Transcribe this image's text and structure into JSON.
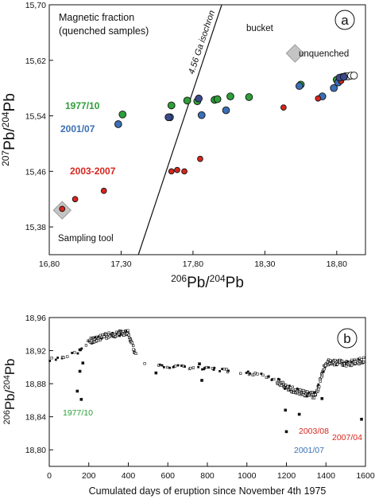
{
  "colors": {
    "green": "#2e9e3a",
    "blue": "#3a6fb6",
    "red": "#d7261e",
    "navy": "#3b4a8a",
    "gray": "#bdbdbd",
    "black": "#111111"
  },
  "chart_data": [
    {
      "type": "scatter",
      "panel_label": "a",
      "title": "Magnetic fraction",
      "subtitle": "(quenched samples)",
      "xlabel": "206Pb/204Pb",
      "ylabel": "207Pb/204Pb",
      "xlim": [
        16.8,
        19.0
      ],
      "ylim": [
        15.34,
        15.7
      ],
      "x_ticks": [
        "16,80",
        "17,30",
        "17,80",
        "18,30",
        "18,80"
      ],
      "y_ticks": [
        "15,38",
        "15,46",
        "15,54",
        "15,62",
        "15,70"
      ],
      "isochron": {
        "label": "4.56 Ga isochron",
        "x": [
          17.42,
          18.0
        ],
        "y": [
          15.34,
          15.7
        ]
      },
      "annotations": [
        {
          "text": "1977/10",
          "color": "#2e9e3a"
        },
        {
          "text": "2001/07",
          "color": "#3a6fb6"
        },
        {
          "text": "2003-2007",
          "color": "#d7261e"
        },
        {
          "text": "bucket"
        },
        {
          "text": "unquenched"
        },
        {
          "text": "Sampling tool"
        }
      ],
      "series": [
        {
          "name": "1977/10",
          "color": "#2e9e3a",
          "x": [
            17.31,
            17.65,
            17.76,
            17.83,
            17.95,
            17.97,
            18.06,
            18.19,
            18.55,
            18.8,
            18.83
          ],
          "y": [
            15.542,
            15.555,
            15.562,
            15.561,
            15.563,
            15.564,
            15.568,
            15.567,
            15.585,
            15.592,
            15.595
          ]
        },
        {
          "name": "2001/07",
          "color": "#3a6fb6",
          "x": [
            17.28,
            17.64,
            17.86,
            18.03,
            18.54,
            18.7,
            18.78,
            18.81
          ],
          "y": [
            15.528,
            15.538,
            15.541,
            15.548,
            15.583,
            15.568,
            15.58,
            15.588
          ]
        },
        {
          "name": "2003-2007",
          "color": "#d7261e",
          "x": [
            16.89,
            16.98,
            17.18,
            17.65,
            17.69,
            17.74,
            17.85,
            18.43,
            18.67,
            18.83
          ],
          "y": [
            15.406,
            15.42,
            15.432,
            15.46,
            15.462,
            15.46,
            15.478,
            15.552,
            15.565,
            15.59
          ]
        },
        {
          "name": "unquenched",
          "color": "#ffffff",
          "x": [
            18.84,
            18.86,
            18.88,
            18.9,
            18.92
          ],
          "y": [
            15.596,
            15.597,
            15.597,
            15.598,
            15.598
          ]
        },
        {
          "name": "navy",
          "color": "#3b4a8a",
          "x": [
            17.63,
            17.84,
            18.82,
            18.85
          ],
          "y": [
            15.538,
            15.565,
            15.595,
            15.596
          ]
        }
      ],
      "diamonds": [
        {
          "name": "bucket",
          "x": 18.51,
          "y": 15.63
        },
        {
          "name": "Sampling tool",
          "x": 16.89,
          "y": 15.404
        }
      ]
    },
    {
      "type": "scatter",
      "panel_label": "b",
      "xlabel": "Cumulated days of eruption since November 4th 1975",
      "ylabel": "206Pb/204Pb",
      "xlim": [
        0,
        1600
      ],
      "ylim": [
        18.78,
        18.96
      ],
      "x_ticks": [
        "0",
        "200",
        "400",
        "600",
        "800",
        "1000",
        "1200",
        "1400",
        "1600"
      ],
      "y_ticks": [
        "18,80",
        "18,84",
        "18,88",
        "18,92",
        "18,96"
      ],
      "annotations": [
        {
          "text": "1977/10",
          "color": "#2e9e3a"
        },
        {
          "text": "2001/07",
          "color": "#3a6fb6"
        },
        {
          "text": "2003/08",
          "color": "#d7261e"
        },
        {
          "text": "2007/04",
          "color": "#d7261e"
        }
      ],
      "main_trend": {
        "x": [
          0,
          60,
          120,
          160,
          200,
          260,
          300,
          360,
          400,
          430,
          460,
          520,
          600,
          700,
          800,
          900,
          1000,
          1100,
          1150,
          1200,
          1250,
          1300,
          1340,
          1360,
          1380,
          1400,
          1450,
          1500,
          1550,
          1600
        ],
        "y": [
          18.909,
          18.912,
          18.916,
          18.92,
          18.931,
          18.936,
          18.938,
          18.941,
          18.941,
          18.92,
          18.905,
          18.903,
          18.901,
          18.9,
          18.899,
          18.896,
          18.893,
          18.889,
          18.884,
          18.876,
          18.871,
          18.868,
          18.866,
          18.874,
          18.892,
          18.906,
          18.906,
          18.904,
          18.906,
          18.909
        ]
      },
      "outliers": {
        "x": [
          142,
          155,
          157,
          162,
          170,
          540,
          760,
          772,
          1195,
          1200,
          1265,
          1380,
          1580
        ],
        "y": [
          18.871,
          18.895,
          18.921,
          18.861,
          18.905,
          18.893,
          18.904,
          18.884,
          18.848,
          18.822,
          18.843,
          18.862,
          18.837
        ]
      }
    }
  ]
}
